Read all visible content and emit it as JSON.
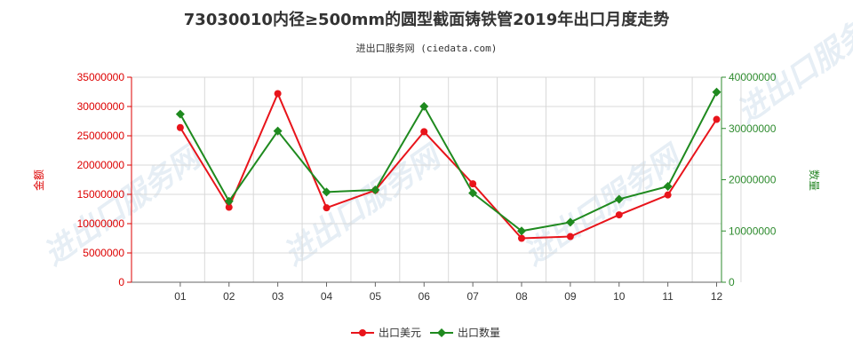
{
  "header": {
    "title": "73030010内径≥500mm的圆型截面铸铁管2019年出口月度走势",
    "subtitle": "进出口服务网 (ciedata.com)"
  },
  "colors": {
    "amount": "#e8141b",
    "quantity": "#1f8a1f",
    "grid": "#d8d8d8",
    "left_axis": "#dd0000",
    "right_axis": "#2e8b2e"
  },
  "chart_data": {
    "type": "line",
    "categories": [
      "01",
      "02",
      "03",
      "04",
      "05",
      "06",
      "07",
      "08",
      "09",
      "10",
      "11",
      "12"
    ],
    "ylabel": "金额",
    "y2label": "数量",
    "ylim": [
      0,
      35000000
    ],
    "y2lim": [
      0,
      40000000
    ],
    "yticks": [
      "0",
      "5000000",
      "10000000",
      "15000000",
      "20000000",
      "25000000",
      "30000000",
      "35000000"
    ],
    "y2ticks": [
      "0",
      "10000000",
      "20000000",
      "30000000",
      "40000000"
    ],
    "grid": true,
    "legend_position": "bottom",
    "series": [
      {
        "name": "出口美元",
        "axis": "left",
        "values": [
          26400000,
          12800000,
          32200000,
          12700000,
          15700000,
          25700000,
          16800000,
          7500000,
          7800000,
          11500000,
          14900000,
          27800000
        ]
      },
      {
        "name": "出口数量",
        "axis": "right",
        "values": [
          32800000,
          15800000,
          29500000,
          17600000,
          18000000,
          34300000,
          17400000,
          10000000,
          11700000,
          16200000,
          18700000,
          37100000
        ]
      }
    ]
  },
  "watermark_text": "进出口服务网"
}
